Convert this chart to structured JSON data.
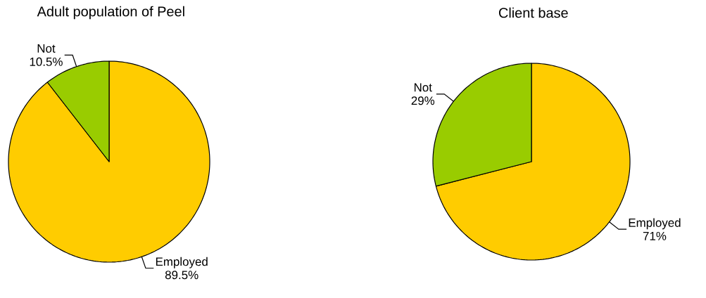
{
  "chart_data": [
    {
      "type": "pie",
      "title": "Adult population of Peel",
      "categories": [
        "Employed",
        "Not"
      ],
      "values": [
        89.5,
        10.5
      ],
      "value_labels": [
        "89.5%",
        "10.5%"
      ],
      "colors": [
        "#ffcc00",
        "#99cc00"
      ]
    },
    {
      "type": "pie",
      "title": "Client base",
      "categories": [
        "Employed",
        "Not"
      ],
      "values": [
        71,
        29
      ],
      "value_labels": [
        "71%",
        "29%"
      ],
      "colors": [
        "#ffcc00",
        "#99cc00"
      ]
    }
  ]
}
